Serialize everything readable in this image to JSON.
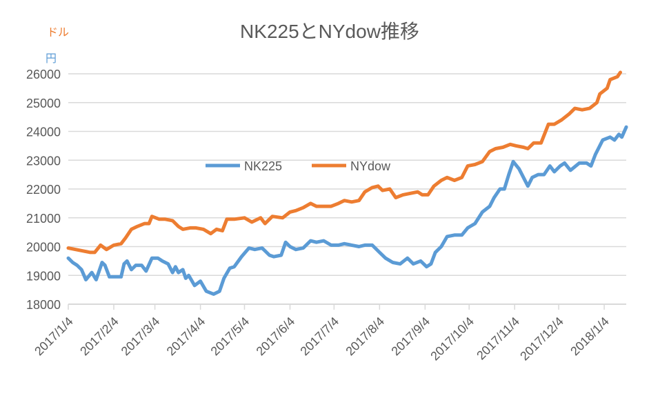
{
  "chart_data": {
    "type": "line",
    "title": "NK225とNYdow推移",
    "unit_labels": {
      "dollar": "ドル",
      "yen": "円"
    },
    "x_unit": "days since 2017/1/4",
    "xlim": [
      0,
      380
    ],
    "ylim": [
      18000,
      26000
    ],
    "y_ticks": [
      18000,
      19000,
      20000,
      21000,
      22000,
      23000,
      24000,
      25000,
      26000
    ],
    "x_tick_labels": [
      {
        "day": 0,
        "label": "2017/1/4"
      },
      {
        "day": 31,
        "label": "2017/2/4"
      },
      {
        "day": 59,
        "label": "2017/3/4"
      },
      {
        "day": 90,
        "label": "2017/4/4"
      },
      {
        "day": 120,
        "label": "2017/5/4"
      },
      {
        "day": 151,
        "label": "2017/6/4"
      },
      {
        "day": 181,
        "label": "2017/7/4"
      },
      {
        "day": 212,
        "label": "2017/8/4"
      },
      {
        "day": 243,
        "label": "2017/9/4"
      },
      {
        "day": 273,
        "label": "2017/10/4"
      },
      {
        "day": 304,
        "label": "2017/11/4"
      },
      {
        "day": 334,
        "label": "2017/12/4"
      },
      {
        "day": 365,
        "label": "2018/1/4"
      }
    ],
    "grid": true,
    "legend_position": "center",
    "series": [
      {
        "name": "NK225",
        "color": "#5B9BD5",
        "x": [
          0,
          3,
          6,
          9,
          12,
          16,
          19,
          23,
          25,
          28,
          32,
          36,
          38,
          40,
          43,
          46,
          50,
          53,
          57,
          61,
          64,
          68,
          71,
          73,
          75,
          78,
          80,
          82,
          86,
          90,
          94,
          99,
          103,
          106,
          110,
          113,
          118,
          123,
          127,
          132,
          137,
          140,
          145,
          148,
          151,
          155,
          160,
          165,
          169,
          174,
          179,
          184,
          188,
          193,
          198,
          202,
          207,
          212,
          216,
          221,
          226,
          231,
          235,
          240,
          244,
          247,
          250,
          254,
          258,
          263,
          268,
          272,
          277,
          282,
          287,
          290,
          294,
          297,
          300,
          303,
          307,
          310,
          313,
          316,
          320,
          324,
          328,
          331,
          335,
          338,
          342,
          348,
          353,
          356,
          359,
          364,
          369,
          372,
          375,
          377,
          380
        ],
        "y": [
          19600,
          19450,
          19350,
          19200,
          18850,
          19100,
          18850,
          19450,
          19350,
          18950,
          18950,
          18950,
          19400,
          19500,
          19200,
          19350,
          19350,
          19150,
          19600,
          19600,
          19500,
          19400,
          19100,
          19300,
          19100,
          19200,
          18900,
          19000,
          18650,
          18800,
          18450,
          18350,
          18450,
          18900,
          19250,
          19300,
          19650,
          19950,
          19900,
          19950,
          19700,
          19650,
          19700,
          20150,
          20000,
          19900,
          19950,
          20200,
          20150,
          20200,
          20050,
          20050,
          20100,
          20050,
          20000,
          20050,
          20050,
          19800,
          19600,
          19450,
          19400,
          19600,
          19400,
          19500,
          19300,
          19400,
          19800,
          20000,
          20350,
          20400,
          20400,
          20650,
          20800,
          21200,
          21400,
          21700,
          22000,
          22000,
          22500,
          22950,
          22700,
          22400,
          22100,
          22400,
          22500,
          22500,
          22800,
          22600,
          22800,
          22900,
          22650,
          22900,
          22900,
          22800,
          23200,
          23700,
          23800,
          23700,
          23900,
          23800,
          24150
        ]
      },
      {
        "name": "NYdow",
        "color": "#ED7D31",
        "x": [
          0,
          5,
          10,
          15,
          18,
          22,
          26,
          31,
          36,
          39,
          43,
          47,
          52,
          55,
          57,
          62,
          66,
          71,
          75,
          78,
          83,
          87,
          92,
          97,
          101,
          105,
          108,
          113,
          120,
          125,
          131,
          134,
          139,
          146,
          151,
          155,
          160,
          165,
          169,
          174,
          179,
          184,
          188,
          193,
          198,
          202,
          207,
          211,
          214,
          219,
          223,
          228,
          233,
          238,
          241,
          245,
          249,
          254,
          258,
          263,
          268,
          272,
          277,
          282,
          287,
          291,
          296,
          301,
          305,
          310,
          313,
          317,
          322,
          327,
          331,
          336,
          341,
          345,
          350,
          355,
          360,
          362,
          367,
          369,
          374,
          376
        ],
        "y": [
          19950,
          19900,
          19850,
          19800,
          19800,
          20050,
          19900,
          20050,
          20100,
          20300,
          20600,
          20700,
          20800,
          20800,
          21050,
          20950,
          20950,
          20900,
          20700,
          20600,
          20650,
          20650,
          20600,
          20450,
          20600,
          20550,
          20950,
          20950,
          21000,
          20850,
          21000,
          20800,
          21050,
          21000,
          21200,
          21250,
          21350,
          21500,
          21400,
          21400,
          21400,
          21500,
          21600,
          21550,
          21600,
          21900,
          22050,
          22100,
          21950,
          22000,
          21700,
          21800,
          21850,
          21900,
          21800,
          21800,
          22100,
          22300,
          22400,
          22300,
          22400,
          22800,
          22850,
          22950,
          23300,
          23400,
          23450,
          23550,
          23500,
          23450,
          23400,
          23600,
          23600,
          24250,
          24250,
          24400,
          24600,
          24800,
          24750,
          24800,
          25000,
          25300,
          25500,
          25800,
          25900,
          26050
        ]
      }
    ]
  }
}
